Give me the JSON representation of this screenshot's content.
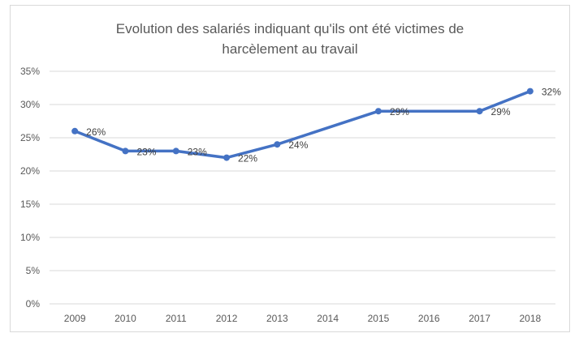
{
  "chart_data": {
    "type": "line",
    "title": "Evolution des salariés indiquant qu'ils ont été victimes de harcèlement au travail",
    "title_lines": [
      "Evolution des salariés indiquant qu'ils ont été victimes de",
      "harcèlement au travail"
    ],
    "categories": [
      "2009",
      "2010",
      "2011",
      "2012",
      "2013",
      "2014",
      "2015",
      "2016",
      "2017",
      "2018"
    ],
    "series": [
      {
        "values": [
          26,
          23,
          23,
          22,
          24,
          null,
          29,
          null,
          29,
          32
        ],
        "data_labels": [
          "26%",
          "23%",
          "23%",
          "22%",
          "24%",
          "",
          "29%",
          "",
          "29%",
          "32%"
        ],
        "color": "#4472c4"
      }
    ],
    "ylim": [
      0,
      35
    ],
    "yticks": [
      "0%",
      "5%",
      "10%",
      "15%",
      "20%",
      "25%",
      "30%",
      "35%"
    ],
    "xlabel": "",
    "ylabel": "",
    "grid": true,
    "gridline_color": "#d9d9d9"
  }
}
